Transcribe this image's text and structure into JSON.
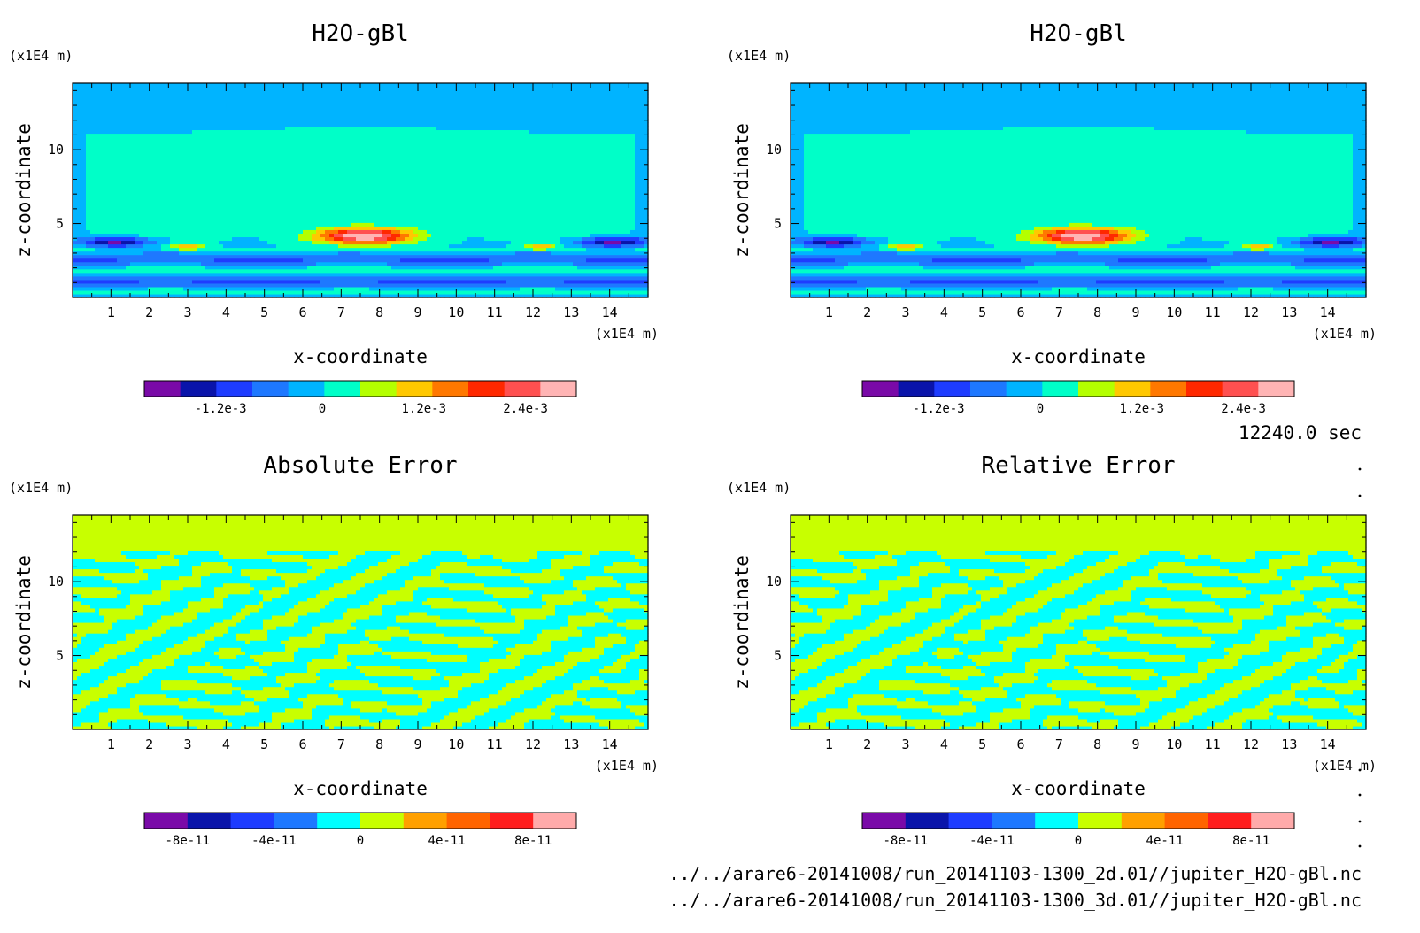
{
  "chart_data": [
    {
      "type": "heatmap",
      "title": "H2O-gBl",
      "xlabel": "x-coordinate",
      "ylabel": "z-coordinate",
      "x_unit": "(x1E4 m)",
      "y_unit": "(x1E4 m)",
      "xlim": [
        0,
        15
      ],
      "ylim": [
        0,
        14.5
      ],
      "x_ticks": [
        1,
        2,
        3,
        4,
        5,
        6,
        7,
        8,
        9,
        10,
        11,
        12,
        13,
        14
      ],
      "y_ticks": [
        5,
        10
      ],
      "field": "plume",
      "colorbar": {
        "range": [
          -0.0021,
          0.003
        ],
        "colors": [
          "#7a0aa8",
          "#0a14aa",
          "#1e3cff",
          "#1e78ff",
          "#00b4ff",
          "#00ffc8",
          "#b4ff00",
          "#ffc800",
          "#ff7800",
          "#ff2800",
          "#ff5050",
          "#ffb4b4"
        ],
        "tick_values": [
          -0.0012,
          0,
          0.0012,
          0.0024
        ],
        "tick_labels": [
          "-1.2e-3",
          "0",
          "1.2e-3",
          "2.4e-3"
        ]
      }
    },
    {
      "type": "heatmap",
      "title": "H2O-gBl",
      "xlabel": "x-coordinate",
      "ylabel": "z-coordinate",
      "x_unit": "(x1E4 m)",
      "y_unit": "(x1E4 m)",
      "xlim": [
        0,
        15
      ],
      "ylim": [
        0,
        14.5
      ],
      "x_ticks": [
        1,
        2,
        3,
        4,
        5,
        6,
        7,
        8,
        9,
        10,
        11,
        12,
        13,
        14
      ],
      "y_ticks": [
        5,
        10
      ],
      "field": "plume",
      "colorbar": {
        "range": [
          -0.0021,
          0.003
        ],
        "colors": [
          "#7a0aa8",
          "#0a14aa",
          "#1e3cff",
          "#1e78ff",
          "#00b4ff",
          "#00ffc8",
          "#b4ff00",
          "#ffc800",
          "#ff7800",
          "#ff2800",
          "#ff5050",
          "#ffb4b4"
        ],
        "tick_values": [
          -0.0012,
          0,
          0.0012,
          0.0024
        ],
        "tick_labels": [
          "-1.2e-3",
          "0",
          "1.2e-3",
          "2.4e-3"
        ]
      }
    },
    {
      "type": "heatmap",
      "title": "Absolute Error",
      "xlabel": "x-coordinate",
      "ylabel": "z-coordinate",
      "x_unit": "(x1E4 m)",
      "y_unit": "(x1E4 m)",
      "xlim": [
        0,
        15
      ],
      "ylim": [
        0,
        14.5
      ],
      "x_ticks": [
        1,
        2,
        3,
        4,
        5,
        6,
        7,
        8,
        9,
        10,
        11,
        12,
        13,
        14
      ],
      "y_ticks": [
        5,
        10
      ],
      "field": "noise",
      "colorbar": {
        "range": [
          -1e-10,
          1e-10
        ],
        "colors": [
          "#7a0aa8",
          "#0a14aa",
          "#1e3cff",
          "#1e78ff",
          "#00ffff",
          "#c8ff00",
          "#ffa000",
          "#ff6400",
          "#ff1e1e",
          "#ffaaaa"
        ],
        "tick_values": [
          -8e-11,
          -4e-11,
          0,
          4e-11,
          8e-11
        ],
        "tick_labels": [
          "-8e-11",
          "-4e-11",
          "0",
          "4e-11",
          "8e-11"
        ]
      }
    },
    {
      "type": "heatmap",
      "title": "Relative Error",
      "xlabel": "x-coordinate",
      "ylabel": "z-coordinate",
      "x_unit": "(x1E4 m)",
      "y_unit": "(x1E4 m)",
      "xlim": [
        0,
        15
      ],
      "ylim": [
        0,
        14.5
      ],
      "x_ticks": [
        1,
        2,
        3,
        4,
        5,
        6,
        7,
        8,
        9,
        10,
        11,
        12,
        13,
        14
      ],
      "y_ticks": [
        5,
        10
      ],
      "field": "noise",
      "colorbar": {
        "range": [
          -1e-10,
          1e-10
        ],
        "colors": [
          "#7a0aa8",
          "#0a14aa",
          "#1e3cff",
          "#1e78ff",
          "#00ffff",
          "#c8ff00",
          "#ffa000",
          "#ff6400",
          "#ff1e1e",
          "#ffaaaa"
        ],
        "tick_values": [
          -8e-11,
          -4e-11,
          0,
          4e-11,
          8e-11
        ],
        "tick_labels": [
          "-8e-11",
          "-4e-11",
          "0",
          "4e-11",
          "8e-11"
        ]
      }
    }
  ],
  "time_label": "12240.0 sec",
  "footer_lines": [
    "../../arare6-20141008/run_20141103-1300_2d.01//jupiter_H2O-gBl.nc",
    "../../arare6-20141008/run_20141103-1300_3d.01//jupiter_H2O-gBl.nc"
  ]
}
